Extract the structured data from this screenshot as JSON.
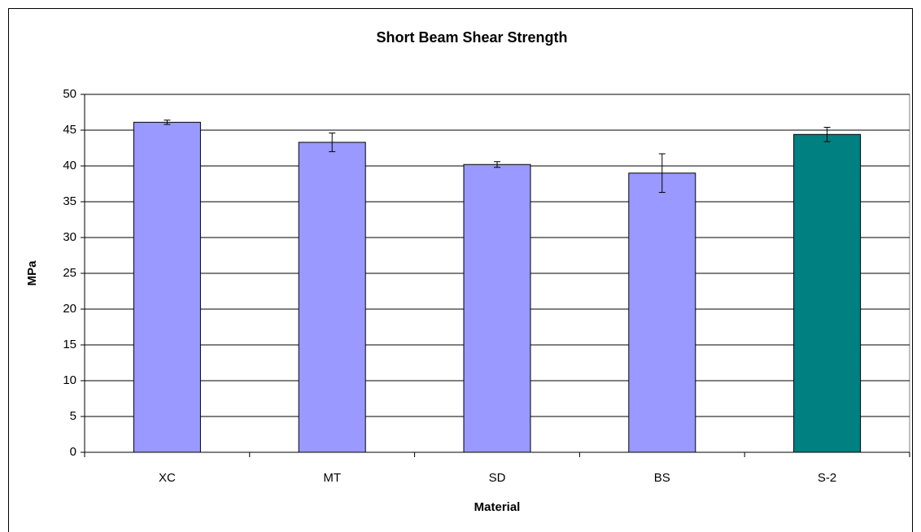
{
  "chart_data": {
    "type": "bar",
    "title": "Short Beam Shear Strength",
    "x_label": "Material",
    "y_label": "MPa",
    "categories": [
      "XC",
      "MT",
      "SD",
      "BS",
      "S-2"
    ],
    "values": [
      46.1,
      43.3,
      40.2,
      39.0,
      44.4
    ],
    "errors": [
      0.3,
      1.3,
      0.4,
      2.7,
      1.0
    ],
    "colors": [
      "#9999ff",
      "#9999ff",
      "#9999ff",
      "#9999ff",
      "#008080"
    ],
    "ylim": [
      0,
      50
    ],
    "yticks": [
      0,
      5,
      10,
      15,
      20,
      25,
      30,
      35,
      40,
      45,
      50
    ],
    "grid": true
  }
}
